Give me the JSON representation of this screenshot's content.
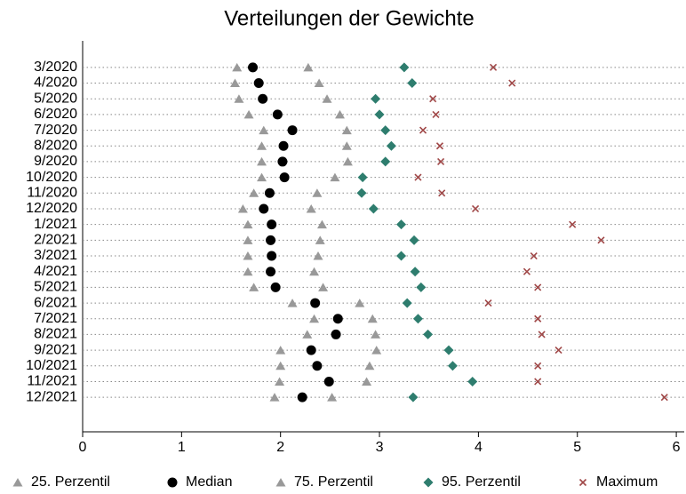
{
  "chart_data": {
    "type": "dot",
    "title": "Verteilungen der Gewichte",
    "categories": [
      "3/2020",
      "4/2020",
      "5/2020",
      "6/2020",
      "7/2020",
      "8/2020",
      "9/2020",
      "10/2020",
      "11/2020",
      "12/2020",
      "1/2021",
      "2/2021",
      "3/2021",
      "4/2021",
      "5/2021",
      "6/2021",
      "7/2021",
      "8/2021",
      "9/2021",
      "10/2021",
      "11/2021",
      "12/2021"
    ],
    "series": [
      {
        "name": "25. Perzentil",
        "color": "#999999",
        "marker": "triangle",
        "values": [
          1.56,
          1.54,
          1.58,
          1.68,
          1.83,
          1.81,
          1.81,
          1.81,
          1.73,
          1.62,
          1.67,
          1.67,
          1.67,
          1.67,
          1.73,
          2.12,
          2.34,
          2.27,
          2.0,
          2.0,
          1.99,
          1.94
        ]
      },
      {
        "name": "Median",
        "color": "#000000",
        "marker": "circle",
        "values": [
          1.72,
          1.78,
          1.82,
          1.97,
          2.12,
          2.03,
          2.02,
          2.04,
          1.89,
          1.83,
          1.91,
          1.9,
          1.91,
          1.9,
          1.95,
          2.35,
          2.58,
          2.56,
          2.31,
          2.37,
          2.49,
          2.22
        ]
      },
      {
        "name": "75. Perzentil",
        "color": "#999999",
        "marker": "triangle",
        "values": [
          2.28,
          2.39,
          2.47,
          2.6,
          2.67,
          2.67,
          2.68,
          2.55,
          2.37,
          2.31,
          2.42,
          2.4,
          2.38,
          2.34,
          2.43,
          2.8,
          2.93,
          2.96,
          2.97,
          2.9,
          2.87,
          2.52
        ]
      },
      {
        "name": "95. Perzentil",
        "color": "#2e7d6e",
        "marker": "diamond",
        "values": [
          3.25,
          3.33,
          2.96,
          3.0,
          3.06,
          3.12,
          3.06,
          2.83,
          2.82,
          2.94,
          3.22,
          3.35,
          3.22,
          3.36,
          3.42,
          3.28,
          3.39,
          3.49,
          3.7,
          3.74,
          3.94,
          3.34
        ]
      },
      {
        "name": "Maximum",
        "color": "#a04848",
        "marker": "cross",
        "values": [
          4.15,
          4.34,
          3.54,
          3.57,
          3.44,
          3.61,
          3.62,
          3.39,
          3.63,
          3.97,
          4.95,
          5.24,
          4.56,
          4.49,
          4.6,
          4.1,
          4.6,
          4.64,
          4.81,
          4.6,
          4.6,
          5.88
        ]
      }
    ],
    "xlim": [
      0,
      6.08
    ],
    "xticks": [
      0,
      1,
      2,
      3,
      4,
      5,
      6
    ]
  }
}
